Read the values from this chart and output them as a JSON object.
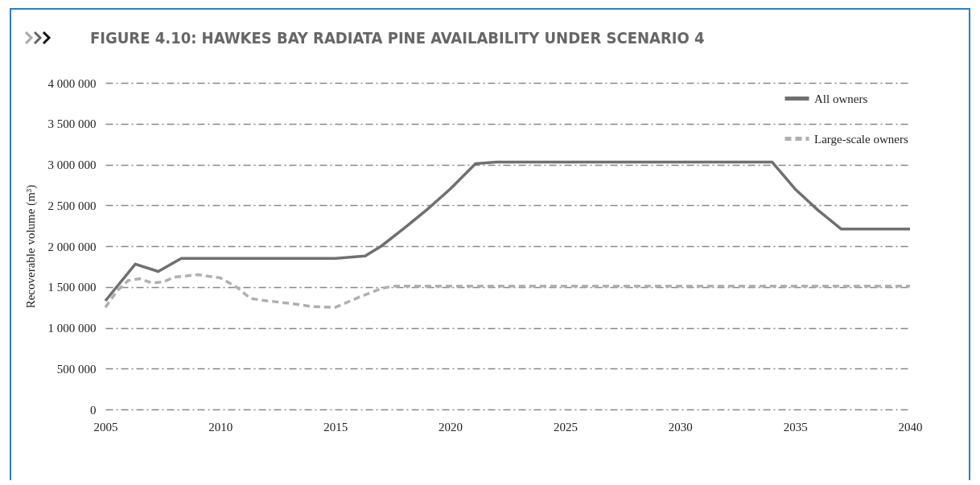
{
  "chart_data": {
    "type": "line",
    "title": "FIGURE 4.10: HAWKES BAY RADIATA PINE AVAILABILITY UNDER SCENARIO 4",
    "ylabel": "Recoverable volume (m³)",
    "xlim": [
      2005,
      2040
    ],
    "xticks": [
      2005,
      2010,
      2015,
      2020,
      2025,
      2030,
      2035,
      2040
    ],
    "ylim": [
      0,
      4000000
    ],
    "yticks": [
      {
        "value": 0,
        "label": "0"
      },
      {
        "value": 500000,
        "label": "500 000"
      },
      {
        "value": 1000000,
        "label": "1 000 000"
      },
      {
        "value": 1500000,
        "label": "1 500 000"
      },
      {
        "value": 2000000,
        "label": "2 000 000"
      },
      {
        "value": 2500000,
        "label": "2 500 000"
      },
      {
        "value": 3000000,
        "label": "3 000 000"
      },
      {
        "value": 3500000,
        "label": "3 500 000"
      },
      {
        "value": 4000000,
        "label": "4 000 000"
      }
    ],
    "grid": "y",
    "legend": "top right",
    "series": [
      {
        "name": "All owners",
        "color": "#707070",
        "line_style": "solid",
        "x": [
          2005,
          2006.3,
          2007.3,
          2008.3,
          2015,
          2016.3,
          2017,
          2018,
          2019,
          2020,
          2021.1,
          2022,
          2034,
          2035,
          2036,
          2037,
          2040
        ],
        "values": [
          1330000,
          1780000,
          1690000,
          1850000,
          1850000,
          1880000,
          2000000,
          2220000,
          2450000,
          2700000,
          3010000,
          3030000,
          3030000,
          2700000,
          2440000,
          2210000,
          2210000
        ]
      },
      {
        "name": "Large-scale owners",
        "color": "#b0b0b0",
        "line_style": "dashed",
        "x": [
          2005,
          2005.5,
          2006,
          2006.5,
          2007,
          2007.5,
          2008,
          2009,
          2010,
          2010.7,
          2011.3,
          2012,
          2013,
          2014,
          2015,
          2016,
          2017,
          2017.5,
          2040
        ],
        "values": [
          1250000,
          1450000,
          1580000,
          1600000,
          1550000,
          1560000,
          1620000,
          1650000,
          1610000,
          1500000,
          1360000,
          1330000,
          1300000,
          1260000,
          1250000,
          1370000,
          1480000,
          1510000,
          1510000
        ]
      }
    ]
  }
}
